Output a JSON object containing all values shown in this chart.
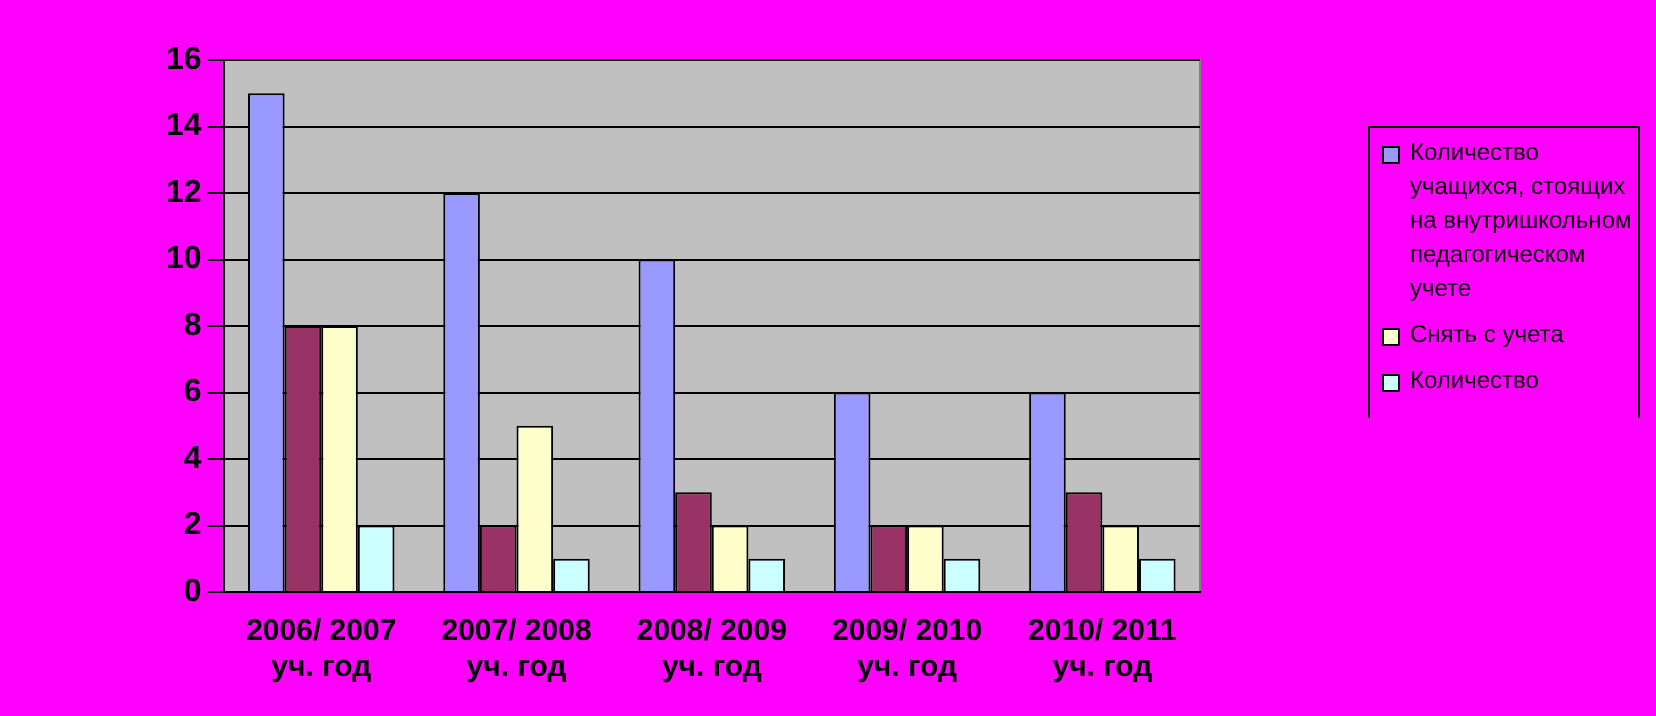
{
  "chart_data": {
    "type": "bar",
    "categories": [
      "2006/ 2007 уч. год",
      "2007/ 2008 уч. год",
      "2008/ 2009 уч. год",
      "2009/ 2010 уч. год",
      "2010/ 2011 уч. год"
    ],
    "series": [
      {
        "name": "Количество учащихся, стоящих на внутришкольном педагогическом учете",
        "color": "#9999ff",
        "values": [
          15,
          12,
          10,
          6,
          6
        ]
      },
      {
        "color": "#993366",
        "values": [
          8,
          2,
          3,
          2,
          3
        ]
      },
      {
        "name": "Снять с учета",
        "color": "#ffffcc",
        "values": [
          8,
          5,
          2,
          2,
          2
        ]
      },
      {
        "name": "Количество",
        "color": "#ccffff",
        "values": [
          2,
          1,
          1,
          1,
          1
        ]
      }
    ],
    "ylim": [
      0,
      16
    ],
    "yticks": [
      0,
      2,
      4,
      6,
      8,
      10,
      12,
      14,
      16
    ],
    "grid": "y",
    "legend": "right"
  }
}
